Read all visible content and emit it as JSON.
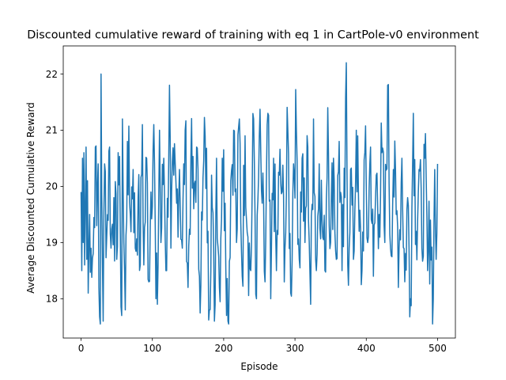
{
  "chart_data": {
    "type": "line",
    "title": "Discounted cumulative reward of training with eq 1 in CartPole-v0 environment",
    "xlabel": "Episode",
    "ylabel": "Average Discounted Cumulative Reward",
    "xlim": [
      -25,
      525
    ],
    "ylim": [
      17.3,
      22.5
    ],
    "xticks": [
      0,
      100,
      200,
      300,
      400,
      500
    ],
    "yticks": [
      18,
      19,
      20,
      21,
      22
    ],
    "xtick_labels": [
      "0",
      "100",
      "200",
      "300",
      "400",
      "500"
    ],
    "ytick_labels": [
      "18",
      "19",
      "20",
      "21",
      "22"
    ],
    "grid": false,
    "legend": "none",
    "series": [
      {
        "color": "#1f77b4",
        "x_start": 0,
        "x_step": 1,
        "anchors": [
          [
            0,
            19.9
          ],
          [
            1,
            18.5
          ],
          [
            2,
            20.5
          ],
          [
            3,
            19.0
          ],
          [
            4,
            20.6
          ],
          [
            5,
            18.6
          ],
          [
            7,
            20.7
          ],
          [
            8,
            18.7
          ],
          [
            9,
            20.1
          ],
          [
            10,
            18.1
          ],
          [
            12,
            19.5
          ],
          [
            14,
            18.9
          ],
          [
            17,
            18.8
          ],
          [
            20,
            20.7
          ],
          [
            22,
            19.3
          ],
          [
            24,
            20.4
          ],
          [
            25,
            18.2
          ],
          [
            27,
            17.5
          ],
          [
            28,
            22.0
          ],
          [
            30,
            18.6
          ],
          [
            31,
            17.6
          ],
          [
            33,
            20.4
          ],
          [
            36,
            19.1
          ],
          [
            40,
            20.7
          ],
          [
            42,
            18.9
          ],
          [
            46,
            19.8
          ],
          [
            50,
            18.7
          ],
          [
            52,
            20.6
          ],
          [
            55,
            19.2
          ],
          [
            57,
            17.7
          ],
          [
            58,
            21.2
          ],
          [
            60,
            19.0
          ],
          [
            62,
            17.8
          ],
          [
            65,
            20.8
          ],
          [
            69,
            19.5
          ],
          [
            73,
            20.3
          ],
          [
            76,
            18.9
          ],
          [
            80,
            19.8
          ],
          [
            83,
            18.6
          ],
          [
            86,
            21.1
          ],
          [
            88,
            18.6
          ],
          [
            92,
            20.5
          ],
          [
            95,
            18.3
          ],
          [
            98,
            19.9
          ],
          [
            102,
            21.1
          ],
          [
            105,
            18.0
          ],
          [
            107,
            17.9
          ],
          [
            110,
            21.0
          ],
          [
            112,
            19.0
          ],
          [
            116,
            20.5
          ],
          [
            120,
            18.5
          ],
          [
            124,
            21.8
          ],
          [
            126,
            18.9
          ],
          [
            130,
            20.2
          ],
          [
            134,
            19.7
          ],
          [
            138,
            20.3
          ],
          [
            142,
            18.9
          ],
          [
            146,
            21.0
          ],
          [
            150,
            18.2
          ],
          [
            154,
            20.5
          ],
          [
            158,
            19.6
          ],
          [
            162,
            20.7
          ],
          [
            166,
            18.4
          ],
          [
            170,
            19.4
          ],
          [
            174,
            20.9
          ],
          [
            178,
            19.2
          ],
          [
            180,
            17.8
          ],
          [
            183,
            20.2
          ],
          [
            187,
            17.6
          ],
          [
            190,
            20.5
          ],
          [
            194,
            18.2
          ],
          [
            198,
            20.5
          ],
          [
            202,
            19.7
          ],
          [
            206,
            17.6
          ],
          [
            210,
            20.1
          ],
          [
            214,
            21.0
          ],
          [
            218,
            19.0
          ],
          [
            222,
            21.2
          ],
          [
            226,
            18.4
          ],
          [
            230,
            20.9
          ],
          [
            234,
            19.1
          ],
          [
            238,
            18.5
          ],
          [
            242,
            21.2
          ],
          [
            246,
            18.0
          ],
          [
            250,
            20.9
          ],
          [
            254,
            19.7
          ],
          [
            258,
            18.3
          ],
          [
            262,
            21.3
          ],
          [
            266,
            18.0
          ],
          [
            270,
            20.5
          ],
          [
            274,
            18.5
          ],
          [
            278,
            20.2
          ],
          [
            282,
            19.9
          ],
          [
            286,
            18.9
          ],
          [
            290,
            21.0
          ],
          [
            294,
            18.1
          ],
          [
            298,
            20.4
          ],
          [
            302,
            21.0
          ],
          [
            306,
            18.7
          ],
          [
            310,
            20.5
          ],
          [
            314,
            19.0
          ],
          [
            318,
            20.7
          ],
          [
            322,
            17.9
          ],
          [
            326,
            21.2
          ],
          [
            330,
            18.5
          ],
          [
            334,
            20.4
          ],
          [
            338,
            19.4
          ],
          [
            342,
            18.5
          ],
          [
            346,
            21.4
          ],
          [
            350,
            19.0
          ],
          [
            354,
            20.5
          ],
          [
            358,
            18.7
          ],
          [
            362,
            20.8
          ],
          [
            366,
            18.5
          ],
          [
            370,
            19.8
          ],
          [
            372,
            22.2
          ],
          [
            374,
            18.6
          ],
          [
            378,
            20.3
          ],
          [
            382,
            18.7
          ],
          [
            386,
            21.0
          ],
          [
            390,
            19.2
          ],
          [
            394,
            18.5
          ],
          [
            398,
            20.6
          ],
          [
            402,
            19.0
          ],
          [
            406,
            20.7
          ],
          [
            410,
            18.4
          ],
          [
            414,
            20.2
          ],
          [
            418,
            19.5
          ],
          [
            422,
            20.6
          ],
          [
            426,
            19.0
          ],
          [
            430,
            21.8
          ],
          [
            434,
            18.9
          ],
          [
            438,
            20.3
          ],
          [
            442,
            19.5
          ],
          [
            446,
            18.9
          ],
          [
            450,
            20.5
          ],
          [
            454,
            18.3
          ],
          [
            458,
            19.8
          ],
          [
            462,
            18.0
          ],
          [
            466,
            21.3
          ],
          [
            470,
            19.2
          ],
          [
            474,
            20.3
          ],
          [
            478,
            18.9
          ],
          [
            482,
            20.5
          ],
          [
            486,
            18.5
          ],
          [
            490,
            19.4
          ],
          [
            494,
            18.0
          ],
          [
            496,
            20.3
          ],
          [
            498,
            18.7
          ],
          [
            500,
            20.4
          ]
        ]
      }
    ]
  }
}
